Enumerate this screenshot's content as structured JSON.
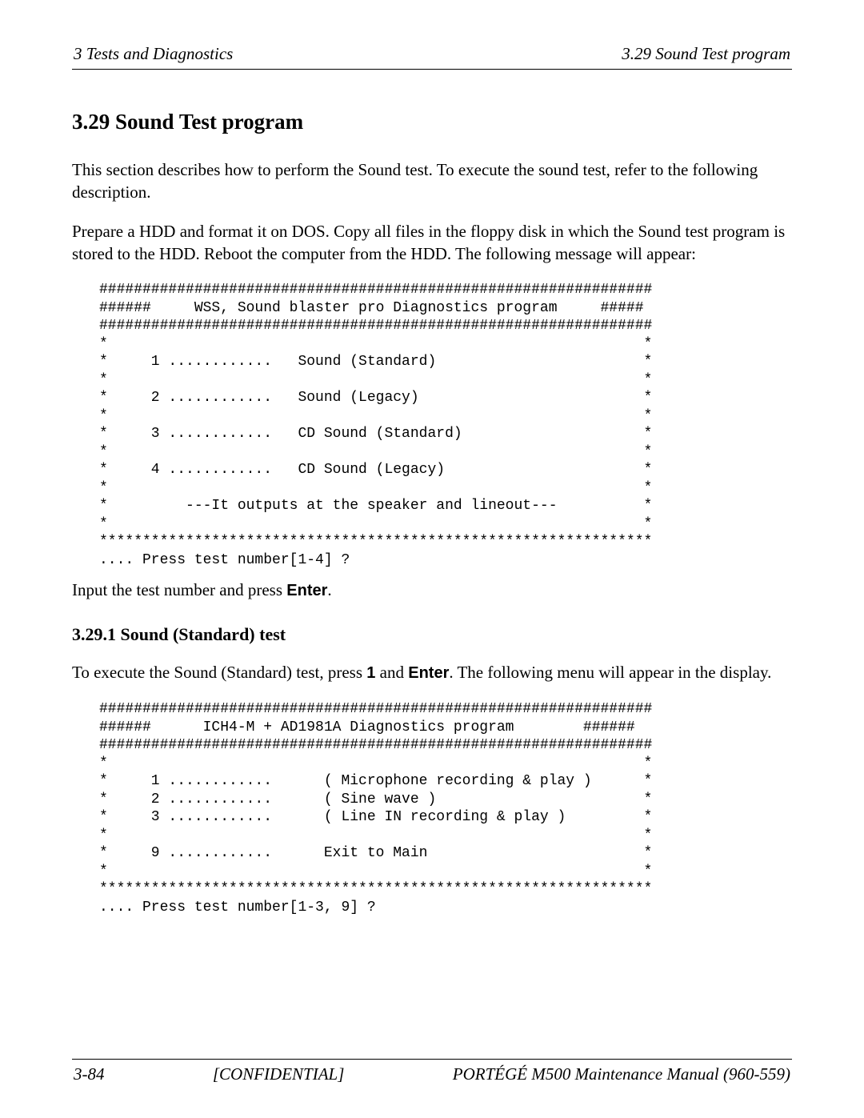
{
  "header": {
    "left": "3 Tests and Diagnostics",
    "right": "3.29  Sound Test program"
  },
  "section": {
    "title": "3.29  Sound Test program",
    "intro1": "This section describes how to perform the Sound test. To execute the sound test, refer to the following description.",
    "intro2": "Prepare a HDD and format it on DOS. Copy all files in the floppy disk in which the Sound test program is stored to the HDD. Reboot the computer from the HDD. The following message will appear:"
  },
  "mono1": "################################################################\n######     WSS, Sound blaster pro Diagnostics program     #####\n################################################################\n*                                                              *\n*     1 ............   Sound (Standard)                        *\n*                                                              *\n*     2 ............   Sound (Legacy)                          *\n*                                                              *\n*     3 ............   CD Sound (Standard)                     *\n*                                                              *\n*     4 ............   CD Sound (Legacy)                       *\n*                                                              *\n*         ---It outputs at the speaker and lineout---          *\n*                                                              *\n****************************************************************\n.... Press test number[1-4] ?",
  "after_mono1_pre": "Input the test number and press ",
  "after_mono1_bold": "Enter",
  "after_mono1_post": ".",
  "subsection": {
    "title": "3.29.1  Sound (Standard) test",
    "text_pre": "To execute the Sound (Standard) test, press ",
    "text_bold1": "1",
    "text_mid": " and ",
    "text_bold2": "Enter",
    "text_post": ". The following menu will appear in the display."
  },
  "mono2": "################################################################\n######      ICH4-M + AD1981A Diagnostics program        ######\n################################################################\n*                                                              *\n*     1 ............      ( Microphone recording & play )      *\n*     2 ............      ( Sine wave )                        *\n*     3 ............      ( Line IN recording & play )         *\n*                                                              *\n*     9 ............      Exit to Main                         *\n*                                                              *\n****************************************************************\n.... Press test number[1-3, 9] ?",
  "footer": {
    "left": "3-84",
    "center": "[CONFIDENTIAL]",
    "right": "PORTÉGÉ M500 Maintenance Manual (960-559)"
  }
}
